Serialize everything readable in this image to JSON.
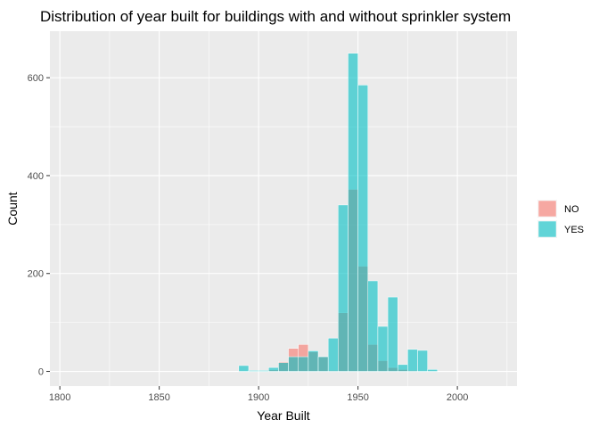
{
  "chart_data": {
    "type": "bar",
    "title": "Distribution of year built for buildings with and without sprinkler system",
    "xlabel": "Year Built",
    "ylabel": "Count",
    "xlim": [
      1795,
      2030
    ],
    "ylim": [
      -30,
      695
    ],
    "x_ticks": [
      1800,
      1850,
      1900,
      1950,
      2000
    ],
    "y_ticks": [
      0,
      200,
      400,
      600
    ],
    "grid": true,
    "legend_position": "right",
    "bin_width": 5,
    "series": [
      {
        "name": "NO",
        "color": "#F8766D",
        "bins": [
          {
            "x": 1905,
            "y": 3
          },
          {
            "x": 1910,
            "y": 20
          },
          {
            "x": 1915,
            "y": 47
          },
          {
            "x": 1920,
            "y": 55
          },
          {
            "x": 1925,
            "y": 40
          },
          {
            "x": 1930,
            "y": 30
          },
          {
            "x": 1935,
            "y": 2
          },
          {
            "x": 1940,
            "y": 120
          },
          {
            "x": 1945,
            "y": 372
          },
          {
            "x": 1950,
            "y": 215
          },
          {
            "x": 1955,
            "y": 55
          },
          {
            "x": 1960,
            "y": 22
          },
          {
            "x": 1965,
            "y": 8
          },
          {
            "x": 1970,
            "y": 4
          },
          {
            "x": 1975,
            "y": 2
          }
        ]
      },
      {
        "name": "YES",
        "color": "#00BFC4",
        "bins": [
          {
            "x": 1890,
            "y": 12
          },
          {
            "x": 1895,
            "y": 2
          },
          {
            "x": 1900,
            "y": 2
          },
          {
            "x": 1905,
            "y": 8
          },
          {
            "x": 1910,
            "y": 18
          },
          {
            "x": 1915,
            "y": 30
          },
          {
            "x": 1920,
            "y": 30
          },
          {
            "x": 1925,
            "y": 42
          },
          {
            "x": 1930,
            "y": 30
          },
          {
            "x": 1935,
            "y": 68
          },
          {
            "x": 1940,
            "y": 340
          },
          {
            "x": 1945,
            "y": 650
          },
          {
            "x": 1950,
            "y": 585
          },
          {
            "x": 1955,
            "y": 185
          },
          {
            "x": 1960,
            "y": 92
          },
          {
            "x": 1965,
            "y": 152
          },
          {
            "x": 1970,
            "y": 14
          },
          {
            "x": 1975,
            "y": 45
          },
          {
            "x": 1980,
            "y": 43
          },
          {
            "x": 1985,
            "y": 4
          }
        ]
      }
    ]
  }
}
